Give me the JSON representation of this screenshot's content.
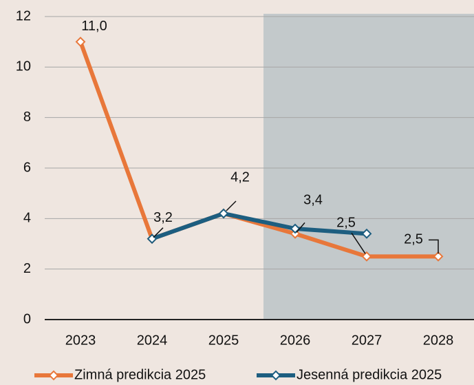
{
  "chart_data": {
    "type": "line",
    "categories": [
      "2023",
      "2024",
      "2025",
      "2026",
      "2027",
      "2028"
    ],
    "series": [
      {
        "name": "Zimná predikcia 2025",
        "color": "#e8773a",
        "values": [
          11.0,
          3.2,
          4.2,
          3.4,
          2.5,
          2.5
        ],
        "value_labels": [
          "11,0",
          "3,2",
          "4,2",
          "3,4",
          "2,5",
          "2,5"
        ]
      },
      {
        "name": "Jesenná predikcia 2025",
        "color": "#1d5e80",
        "values": [
          null,
          3.2,
          4.2,
          3.6,
          3.4,
          null
        ]
      }
    ],
    "ylim": [
      0,
      12
    ],
    "yticks": [
      0,
      2,
      4,
      6,
      8,
      10,
      12
    ],
    "grid": true
  }
}
